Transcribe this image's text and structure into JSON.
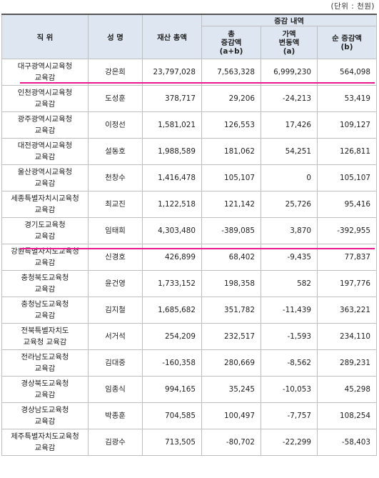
{
  "unit_note": "(단위 : 천원)",
  "headers": {
    "position": "직 위",
    "name": "성 명",
    "total_assets": "재산 총액",
    "change_group": "증감 내역",
    "total_change": [
      "총",
      "증감액",
      "(a+b)"
    ],
    "value_change": [
      "가액",
      "변동액",
      "(a)"
    ],
    "net_change": [
      "순 증감액",
      "(b)"
    ]
  },
  "rows": [
    {
      "position": [
        "대구광역시교육청",
        "교육감"
      ],
      "name": "강은희",
      "total": "23,797,028",
      "total_change": "7,563,328",
      "value_change": "6,999,230",
      "net_change": "564,098"
    },
    {
      "position": [
        "인천광역시교육청",
        "교육감"
      ],
      "name": "도성훈",
      "total": "378,717",
      "total_change": "29,206",
      "value_change": "-24,213",
      "net_change": "53,419"
    },
    {
      "position": [
        "광주광역시교육청",
        "교육감"
      ],
      "name": "이정선",
      "total": "1,581,021",
      "total_change": "126,553",
      "value_change": "17,426",
      "net_change": "109,127"
    },
    {
      "position": [
        "대전광역시교육청",
        "교육감"
      ],
      "name": "설동호",
      "total": "1,988,589",
      "total_change": "181,062",
      "value_change": "54,251",
      "net_change": "126,811"
    },
    {
      "position": [
        "울산광역시교육청",
        "교육감"
      ],
      "name": "천창수",
      "total": "1,416,478",
      "total_change": "105,107",
      "value_change": "0",
      "net_change": "105,107"
    },
    {
      "position": [
        "세종특별자치시교육청",
        "교육감"
      ],
      "name": "최교진",
      "total": "1,122,518",
      "total_change": "121,142",
      "value_change": "25,726",
      "net_change": "95,416"
    },
    {
      "position": [
        "경기도교육청",
        "교육감"
      ],
      "name": "임태희",
      "total": "4,303,480",
      "total_change": "-389,085",
      "value_change": "3,870",
      "net_change": "-392,955"
    },
    {
      "position": [
        "강원특별자치도교육청",
        "교육감"
      ],
      "name": "신경호",
      "total": "426,899",
      "total_change": "68,402",
      "value_change": "-9,435",
      "net_change": "77,837"
    },
    {
      "position": [
        "충청북도교육청",
        "교육감"
      ],
      "name": "윤건영",
      "total": "1,733,152",
      "total_change": "198,358",
      "value_change": "582",
      "net_change": "197,776"
    },
    {
      "position": [
        "충청남도교육청",
        "교육감"
      ],
      "name": "김지철",
      "total": "1,685,682",
      "total_change": "351,782",
      "value_change": "-11,439",
      "net_change": "363,221"
    },
    {
      "position": [
        "전북특별자치도",
        "교육청 교육감"
      ],
      "name": "서거석",
      "total": "254,209",
      "total_change": "232,517",
      "value_change": "-1,593",
      "net_change": "234,110"
    },
    {
      "position": [
        "전라남도교육청",
        "교육감"
      ],
      "name": "김대중",
      "total": "-160,358",
      "total_change": "280,669",
      "value_change": "-8,562",
      "net_change": "289,231"
    },
    {
      "position": [
        "경상북도교육청",
        "교육감"
      ],
      "name": "임종식",
      "total": "994,165",
      "total_change": "35,245",
      "value_change": "-10,053",
      "net_change": "45,298"
    },
    {
      "position": [
        "경상남도교육청",
        "교육감"
      ],
      "name": "박종훈",
      "total": "704,585",
      "total_change": "100,497",
      "value_change": "-7,757",
      "net_change": "108,254"
    },
    {
      "position": [
        "제주특별자치도교육청",
        "교육감"
      ],
      "name": "김광수",
      "total": "713,505",
      "total_change": "-80,702",
      "value_change": "-22,299",
      "net_change": "-58,403"
    }
  ],
  "highlight_color": "#e8198f"
}
